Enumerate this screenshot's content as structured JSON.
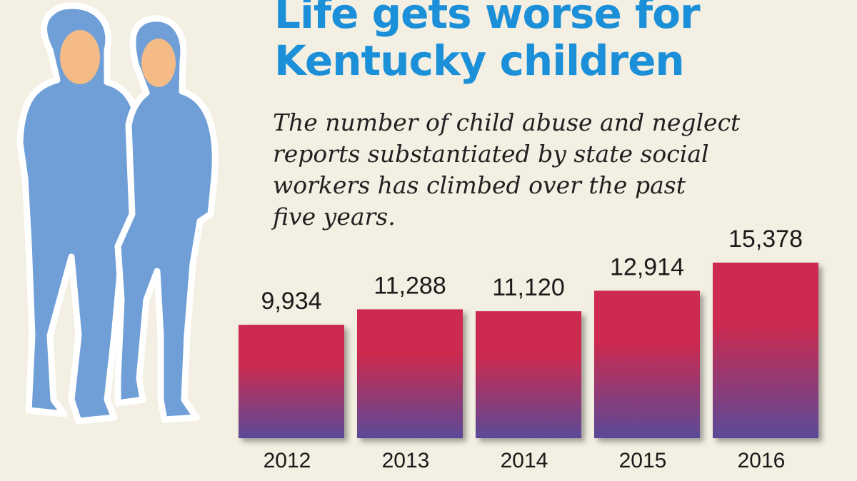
{
  "title_lines": [
    "Life gets worse for",
    "Kentucky children"
  ],
  "subtitle_lines": [
    "The number of child abuse and neglect",
    "reports substantiated by state social",
    "workers has climbed over the past",
    "five years."
  ],
  "chart_data": {
    "type": "bar",
    "title": "Life gets worse for Kentucky children",
    "subtitle": "The number of child abuse and neglect reports substantiated by state social workers has climbed over the past five years.",
    "categories": [
      "2012",
      "2013",
      "2014",
      "2015",
      "2016"
    ],
    "values": [
      9934,
      11288,
      11120,
      12914,
      15378
    ],
    "value_labels": [
      "9,934",
      "11,288",
      "11,120",
      "12,914",
      "15,378"
    ],
    "xlabel": "",
    "ylabel": "",
    "ylim": [
      0,
      15378
    ],
    "grid": false,
    "bar_gradient": [
      "#cc2a4f",
      "#5a4a98"
    ]
  },
  "colors": {
    "title": "#1b8fd8",
    "background": "#f3efe2",
    "silhouette": "#6f9fd6",
    "skin": "#f5bb86"
  }
}
